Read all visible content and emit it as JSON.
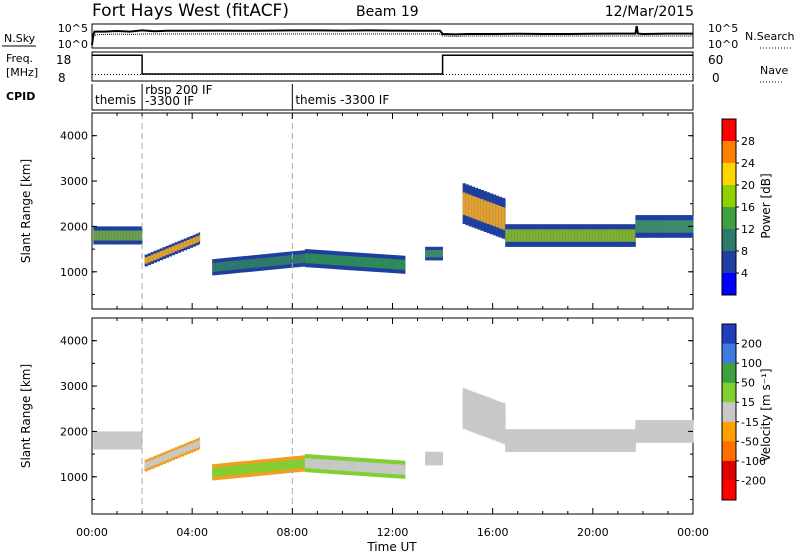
{
  "header": {
    "station": "Fort Hays West (fitACF)",
    "beam": "Beam 19",
    "date": "12/Mar/2015"
  },
  "chart_data": [
    {
      "type": "line",
      "name_left": "N.Sky",
      "name_right": "N.Search",
      "yticks_left": [
        "10^5",
        "10^0"
      ],
      "yticks_right": [
        "10^5",
        "10^0"
      ],
      "x_hours": [
        0,
        0.05,
        0.1,
        0.5,
        1,
        1.5,
        2,
        2.5,
        3,
        4,
        5,
        6,
        7,
        8,
        9,
        10,
        11,
        12,
        13,
        13.9,
        14,
        14.5,
        15,
        16,
        17,
        18,
        19,
        20,
        21,
        21.7,
        21.75,
        21.8,
        22,
        23,
        24
      ],
      "nsky_level": [
        0.05,
        0.55,
        0.72,
        0.72,
        0.75,
        0.72,
        0.78,
        0.74,
        0.76,
        0.76,
        0.77,
        0.76,
        0.77,
        0.78,
        0.78,
        0.77,
        0.78,
        0.77,
        0.76,
        0.76,
        0.6,
        0.58,
        0.6,
        0.6,
        0.61,
        0.6,
        0.6,
        0.61,
        0.62,
        0.62,
        1.0,
        0.62,
        0.6,
        0.62,
        0.62
      ],
      "nsearch_level": [
        0.1,
        0.45,
        0.55,
        0.58,
        0.6,
        0.58,
        0.6,
        0.6,
        0.6,
        0.6,
        0.6,
        0.6,
        0.6,
        0.6,
        0.6,
        0.6,
        0.6,
        0.6,
        0.6,
        0.6,
        0.5,
        0.48,
        0.5,
        0.5,
        0.5,
        0.5,
        0.5,
        0.5,
        0.5,
        0.5,
        0.5,
        0.5,
        0.5,
        0.5,
        0.5
      ]
    },
    {
      "type": "line",
      "name_left_1": "Freq.",
      "name_left_2": "[MHz]",
      "name_right": "Nave",
      "yticks_left": [
        "18",
        "8"
      ],
      "yticks_right": [
        "60",
        "0"
      ],
      "freq_steps": [
        {
          "from": 0,
          "to": 2,
          "level": 0.95
        },
        {
          "from": 2,
          "to": 14,
          "level": 0.2
        },
        {
          "from": 14,
          "to": 24,
          "level": 0.95
        }
      ],
      "nave_level": 0.18
    },
    {
      "type": "table",
      "label": "CPID",
      "segments": [
        {
          "start": 0,
          "lines": [
            "themis"
          ]
        },
        {
          "start": 2,
          "lines": [
            "rbsp 200 IF",
            "-3300 IF"
          ]
        },
        {
          "start": 8,
          "lines": [
            "themis -3300 IF"
          ]
        }
      ]
    },
    {
      "type": "heatmap",
      "ylabel": "Slant Range [km]",
      "yticks": [
        "1000",
        "2000",
        "3000",
        "4000"
      ],
      "y_values": [
        1000,
        2000,
        3000,
        4000
      ],
      "ylim": [
        180,
        4500
      ],
      "colorbar_label": "Power [dB]",
      "colorbar_ticks": [
        "28",
        "24",
        "20",
        "16",
        "12",
        "8",
        "4"
      ],
      "colorbar_colors": [
        "#ff0000",
        "#ff7f00",
        "#ffd700",
        "#8fd000",
        "#3fa03f",
        "#2e7a6a",
        "#1f3fa0",
        "#0000ff"
      ],
      "regions": [
        {
          "x0": 0.05,
          "x1": 2.0,
          "c": 1800,
          "w": 200,
          "color": "#6aa04a",
          "edge": "#1f3fa0"
        },
        {
          "x0": 2.1,
          "x1": 4.3,
          "c": 1250,
          "w": 130,
          "color": "#e0a030",
          "edge": "#1f3fa0",
          "slope": 500
        },
        {
          "x0": 4.8,
          "x1": 8.5,
          "c": 1100,
          "w": 180,
          "color": "#2f7a6a",
          "edge": "#1f3fa0",
          "slope": 200
        },
        {
          "x0": 8.5,
          "x1": 12.5,
          "c": 1300,
          "w": 200,
          "color": "#2f8a5a",
          "edge": "#1f3fa0",
          "slope": -150
        },
        {
          "x0": 13.3,
          "x1": 14.0,
          "c": 1400,
          "w": 150,
          "color": "#3f8a6a",
          "edge": "#1f3fa0"
        },
        {
          "x0": 14.8,
          "x1": 16.5,
          "c": 2500,
          "w": 450,
          "color": "#e0a030",
          "edge": "#1f3fa0",
          "slope": -350
        },
        {
          "x0": 16.5,
          "x1": 21.7,
          "c": 1800,
          "w": 250,
          "color": "#7fb030",
          "edge": "#1f3fa0",
          "slope": 0
        },
        {
          "x0": 21.7,
          "x1": 24.0,
          "c": 2000,
          "w": 250,
          "color": "#3f8a6a",
          "edge": "#1f3fa0"
        }
      ]
    },
    {
      "type": "heatmap",
      "ylabel": "Slant Range [km]",
      "yticks": [
        "1000",
        "2000",
        "3000",
        "4000"
      ],
      "y_values": [
        1000,
        2000,
        3000,
        4000
      ],
      "ylim": [
        180,
        4500
      ],
      "colorbar_label": "Velocity [m s⁻¹]",
      "colorbar_ticks": [
        "200",
        "100",
        "50",
        "15",
        "-15",
        "-50",
        "-100",
        "-200"
      ],
      "colorbar_colors": [
        "#1f3fc0",
        "#3f7ae0",
        "#3fa03f",
        "#7fd030",
        "#c8c8c8",
        "#ff9f00",
        "#ff6f00",
        "#e00000",
        "#ff0000"
      ],
      "regions": [
        {
          "x0": 0.05,
          "x1": 2.0,
          "c": 1800,
          "w": 200,
          "color": "#c8c8c8",
          "edge": "#c8c8c8"
        },
        {
          "x0": 2.1,
          "x1": 4.3,
          "c": 1250,
          "w": 130,
          "color": "#c8c8c8",
          "edge": "#f0a020",
          "slope": 500
        },
        {
          "x0": 4.8,
          "x1": 8.5,
          "c": 1100,
          "w": 180,
          "color": "#7fd030",
          "edge": "#f0a020",
          "slope": 200
        },
        {
          "x0": 8.5,
          "x1": 12.5,
          "c": 1300,
          "w": 200,
          "color": "#c8c8c8",
          "edge": "#7fd030",
          "slope": -150
        },
        {
          "x0": 13.3,
          "x1": 14.0,
          "c": 1400,
          "w": 150,
          "color": "#c8c8c8",
          "edge": "#c8c8c8"
        },
        {
          "x0": 14.8,
          "x1": 16.5,
          "c": 2500,
          "w": 450,
          "color": "#c8c8c8",
          "edge": "#c8c8c8",
          "slope": -350
        },
        {
          "x0": 16.5,
          "x1": 21.7,
          "c": 1800,
          "w": 250,
          "color": "#c8c8c8",
          "edge": "#c8c8c8",
          "slope": 0
        },
        {
          "x0": 21.7,
          "x1": 24.0,
          "c": 2000,
          "w": 250,
          "color": "#c8c8c8",
          "edge": "#c8c8c8"
        }
      ]
    }
  ],
  "x_axis": {
    "label": "Time UT",
    "ticks": [
      "00:00",
      "04:00",
      "08:00",
      "12:00",
      "16:00",
      "20:00",
      "00:00"
    ],
    "tick_hours": [
      0,
      4,
      8,
      12,
      16,
      20,
      24
    ],
    "xlim": [
      0,
      24
    ],
    "dashed_hours": [
      2,
      8
    ]
  }
}
